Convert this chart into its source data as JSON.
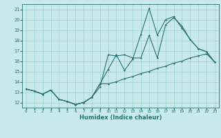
{
  "xlabel": "Humidex (Indice chaleur)",
  "bg_color": "#c8eaea",
  "line_color": "#2a7070",
  "grid_color": "#9ecece",
  "xlim": [
    -0.5,
    23.5
  ],
  "ylim": [
    11.5,
    21.5
  ],
  "xticks": [
    0,
    1,
    2,
    3,
    4,
    5,
    6,
    7,
    8,
    9,
    10,
    11,
    12,
    13,
    14,
    15,
    16,
    17,
    18,
    19,
    20,
    21,
    22,
    23
  ],
  "yticks": [
    12,
    13,
    14,
    15,
    16,
    17,
    18,
    19,
    20,
    21
  ],
  "line1_x": [
    0,
    1,
    2,
    3,
    4,
    5,
    6,
    7,
    8,
    9,
    10,
    11,
    12,
    13,
    14,
    15,
    16,
    17,
    18,
    19,
    20,
    21,
    22,
    23
  ],
  "line1_y": [
    13.3,
    13.1,
    12.8,
    13.2,
    12.3,
    12.1,
    11.8,
    12.0,
    12.5,
    13.5,
    16.6,
    16.5,
    16.6,
    16.3,
    16.3,
    18.5,
    16.3,
    19.5,
    20.2,
    19.4,
    18.1,
    17.2,
    16.9,
    15.9
  ],
  "line2_x": [
    0,
    1,
    2,
    3,
    4,
    5,
    6,
    7,
    8,
    9,
    10,
    11,
    12,
    13,
    14,
    15,
    16,
    17,
    18,
    19,
    20,
    21,
    22,
    23
  ],
  "line2_y": [
    13.3,
    13.1,
    12.8,
    13.2,
    12.3,
    12.1,
    11.8,
    12.0,
    12.5,
    13.8,
    15.2,
    16.6,
    15.1,
    16.2,
    18.6,
    21.1,
    18.5,
    20.0,
    20.3,
    19.2,
    18.1,
    17.2,
    16.9,
    15.9
  ],
  "line3_x": [
    0,
    1,
    2,
    3,
    4,
    5,
    6,
    7,
    8,
    9,
    10,
    11,
    12,
    13,
    14,
    15,
    16,
    17,
    18,
    19,
    20,
    21,
    22,
    23
  ],
  "line3_y": [
    13.3,
    13.1,
    12.8,
    13.2,
    12.3,
    12.1,
    11.8,
    12.0,
    12.5,
    13.8,
    13.8,
    14.0,
    14.3,
    14.5,
    14.8,
    15.0,
    15.3,
    15.5,
    15.8,
    16.0,
    16.3,
    16.5,
    16.7,
    15.9
  ]
}
